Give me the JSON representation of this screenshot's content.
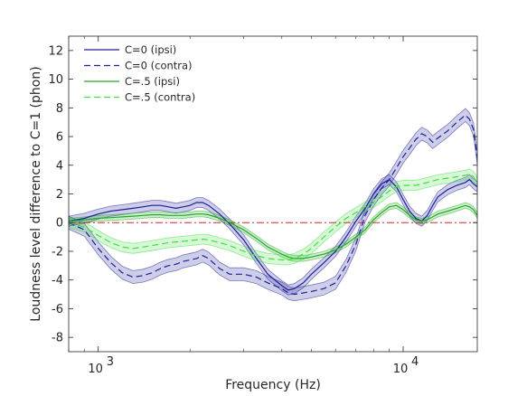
{
  "chart_data": {
    "type": "line",
    "xlabel": "Frequency (Hz)",
    "ylabel": "Loudness level difference to C=1 (phon)",
    "xscale": "log",
    "xlim": [
      800,
      17500
    ],
    "ylim": [
      -9,
      13
    ],
    "x_tick_labels": [
      {
        "value": 1000,
        "base": "10",
        "exp": "3"
      },
      {
        "value": 10000,
        "base": "10",
        "exp": "4"
      }
    ],
    "y_ticks": [
      -8,
      -6,
      -4,
      -2,
      0,
      2,
      4,
      6,
      8,
      10,
      12
    ],
    "grid": false,
    "legend_position": "top-left",
    "reference_line": {
      "y": 0,
      "color": "#d62728",
      "style": "dash-dot"
    },
    "x": [
      800,
      900,
      1000,
      1100,
      1200,
      1300,
      1400,
      1500,
      1600,
      1700,
      1800,
      1900,
      2000,
      2100,
      2200,
      2300,
      2500,
      2700,
      3000,
      3300,
      3600,
      4000,
      4200,
      4400,
      4700,
      5000,
      5500,
      6000,
      6500,
      7000,
      7500,
      8000,
      8500,
      9000,
      9500,
      10000,
      10500,
      11000,
      11500,
      12000,
      12500,
      13000,
      14000,
      15000,
      16000,
      16500,
      17000,
      17500
    ],
    "series": [
      {
        "name": "C=0 (ipsi)",
        "color": "#1f1f99",
        "dash": "solid",
        "band": 0.35,
        "values": [
          0.1,
          0.3,
          0.6,
          0.8,
          0.9,
          1.0,
          1.1,
          1.2,
          1.2,
          1.1,
          1.0,
          1.1,
          1.2,
          1.4,
          1.4,
          1.2,
          0.6,
          -0.1,
          -1.2,
          -2.5,
          -3.6,
          -4.4,
          -4.7,
          -4.6,
          -4.2,
          -3.6,
          -2.8,
          -2.0,
          -1.0,
          0.1,
          1.0,
          2.0,
          2.7,
          3.0,
          2.5,
          1.6,
          0.8,
          0.3,
          0.1,
          0.5,
          1.2,
          1.8,
          2.3,
          2.6,
          2.8,
          3.0,
          2.7,
          2.5
        ]
      },
      {
        "name": "C=0 (contra)",
        "color": "#1f1f99",
        "dash": "dashed",
        "band": 0.45,
        "values": [
          0.0,
          -0.5,
          -1.8,
          -2.8,
          -3.5,
          -3.8,
          -3.7,
          -3.5,
          -3.2,
          -3.0,
          -2.9,
          -2.7,
          -2.6,
          -2.5,
          -2.3,
          -2.5,
          -3.2,
          -3.6,
          -3.6,
          -3.8,
          -4.2,
          -4.6,
          -4.9,
          -5.0,
          -4.9,
          -4.8,
          -4.6,
          -4.2,
          -3.0,
          -1.5,
          0.5,
          1.6,
          2.4,
          3.0,
          3.8,
          4.6,
          5.2,
          5.8,
          6.2,
          6.0,
          5.6,
          5.9,
          6.4,
          7.0,
          7.5,
          7.2,
          6.5,
          4.5
        ]
      },
      {
        "name": "C=.5 (ipsi)",
        "color": "#22aa22",
        "dash": "solid",
        "band": 0.2,
        "values": [
          0.1,
          0.2,
          0.3,
          0.35,
          0.4,
          0.45,
          0.5,
          0.55,
          0.55,
          0.5,
          0.5,
          0.5,
          0.55,
          0.6,
          0.6,
          0.55,
          0.3,
          0.0,
          -0.5,
          -1.1,
          -1.7,
          -2.2,
          -2.4,
          -2.5,
          -2.5,
          -2.4,
          -2.2,
          -1.9,
          -1.5,
          -1.0,
          -0.5,
          0.2,
          0.7,
          1.1,
          1.2,
          0.9,
          0.5,
          0.2,
          0.1,
          0.2,
          0.4,
          0.6,
          0.8,
          1.0,
          1.2,
          1.1,
          0.9,
          0.5
        ]
      },
      {
        "name": "C=.5 (contra)",
        "color": "#44dd44",
        "dash": "dashed",
        "band": 0.35,
        "values": [
          0.0,
          -0.3,
          -0.9,
          -1.4,
          -1.7,
          -1.8,
          -1.7,
          -1.6,
          -1.5,
          -1.4,
          -1.35,
          -1.3,
          -1.25,
          -1.2,
          -1.15,
          -1.2,
          -1.4,
          -1.6,
          -2.0,
          -2.3,
          -2.5,
          -2.6,
          -2.6,
          -2.5,
          -2.2,
          -1.8,
          -1.0,
          -0.3,
          0.3,
          0.7,
          1.1,
          1.4,
          1.8,
          2.2,
          2.5,
          2.6,
          2.6,
          2.6,
          2.7,
          2.8,
          2.9,
          3.0,
          3.1,
          3.2,
          3.3,
          3.4,
          3.2,
          2.8
        ]
      }
    ]
  }
}
